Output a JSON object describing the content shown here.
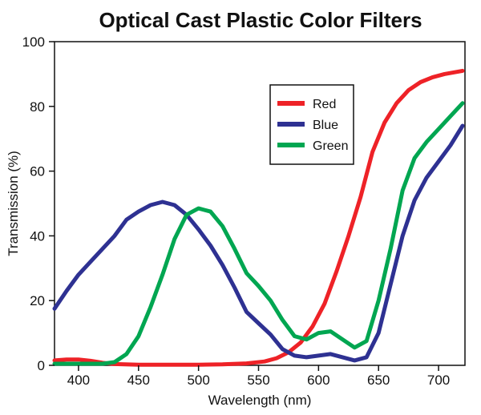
{
  "chart_data": {
    "type": "line",
    "title": "Optical Cast Plastic Color Filters",
    "xlabel": "Wavelength (nm)",
    "ylabel": "Transmission (%)",
    "xlim": [
      380,
      722
    ],
    "ylim": [
      0,
      100
    ],
    "x_ticks": [
      400,
      450,
      500,
      550,
      600,
      650,
      700
    ],
    "y_ticks": [
      0,
      20,
      40,
      60,
      80,
      100
    ],
    "grid": false,
    "legend_position": "top-right",
    "series": [
      {
        "name": "Red",
        "color": "#ee2227",
        "x": [
          380,
          390,
          400,
          410,
          420,
          430,
          450,
          470,
          500,
          520,
          540,
          555,
          565,
          575,
          585,
          595,
          605,
          615,
          625,
          635,
          645,
          655,
          665,
          675,
          685,
          695,
          705,
          720
        ],
        "y": [
          1.5,
          1.8,
          1.8,
          1.4,
          0.8,
          0.4,
          0.2,
          0.2,
          0.2,
          0.3,
          0.6,
          1.2,
          2.2,
          4,
          7,
          12,
          19,
          29,
          40,
          52,
          66,
          75,
          81,
          85,
          87.5,
          89,
          90,
          91
        ]
      },
      {
        "name": "Blue",
        "color": "#2e3192",
        "x": [
          380,
          390,
          400,
          410,
          420,
          430,
          440,
          450,
          460,
          470,
          480,
          490,
          500,
          510,
          520,
          530,
          540,
          550,
          560,
          570,
          580,
          590,
          600,
          610,
          620,
          630,
          640,
          650,
          660,
          670,
          680,
          690,
          700,
          710,
          720
        ],
        "y": [
          17.5,
          23,
          28,
          32,
          36,
          40,
          45,
          47.5,
          49.5,
          50.5,
          49.5,
          46.5,
          42,
          37,
          31,
          24,
          16.5,
          13,
          9.5,
          5,
          3,
          2.5,
          3,
          3.5,
          2.5,
          1.5,
          2.5,
          10,
          25,
          40,
          51,
          58,
          63,
          68,
          74
        ]
      },
      {
        "name": "Green",
        "color": "#00a651",
        "x": [
          380,
          390,
          400,
          410,
          420,
          430,
          440,
          450,
          460,
          470,
          480,
          490,
          500,
          510,
          520,
          530,
          540,
          550,
          560,
          570,
          580,
          590,
          600,
          610,
          620,
          630,
          640,
          650,
          660,
          670,
          680,
          690,
          700,
          710,
          720
        ],
        "y": [
          0.5,
          0.5,
          0.5,
          0.5,
          0.5,
          1,
          3.5,
          9,
          18,
          28,
          39,
          46.5,
          48.5,
          47.5,
          43,
          36,
          28.5,
          24.5,
          20,
          14,
          9,
          8,
          10,
          10.5,
          8,
          5.5,
          7.5,
          20,
          36,
          54,
          64,
          69,
          73,
          77,
          81
        ]
      }
    ]
  }
}
